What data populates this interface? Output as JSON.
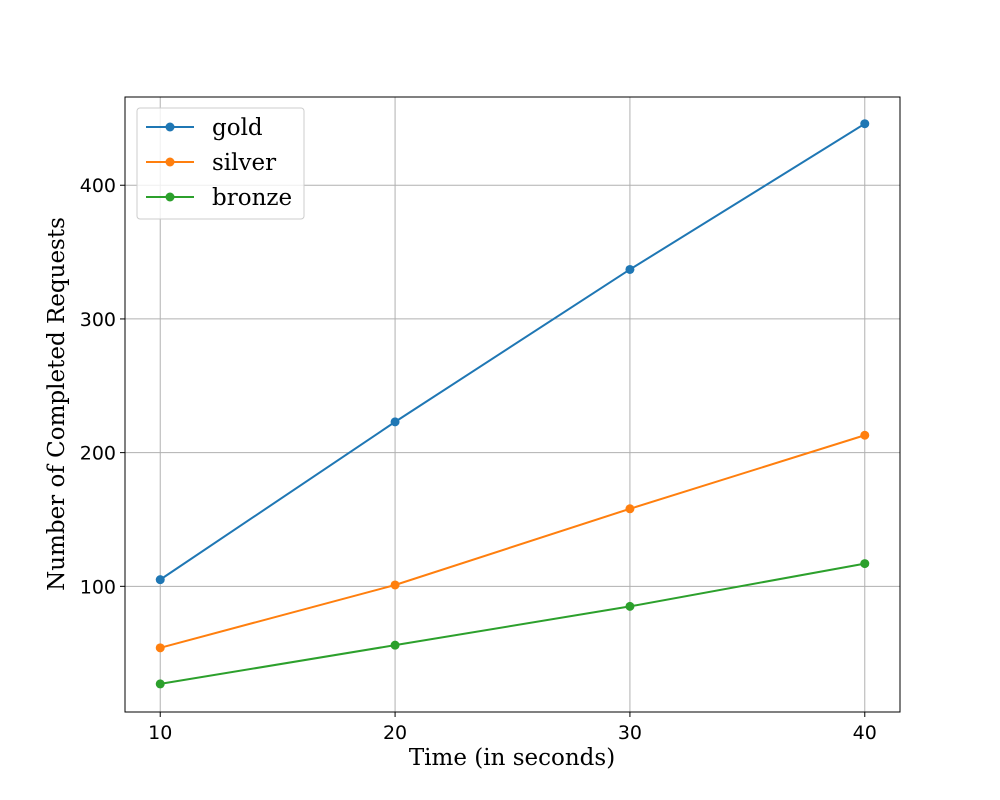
{
  "chart_data": {
    "type": "line",
    "title": "",
    "xlabel": "Time (in seconds)",
    "ylabel": "Number of Completed Requests",
    "x": [
      10,
      20,
      30,
      40
    ],
    "x_ticks": [
      10,
      20,
      30,
      40
    ],
    "y_ticks": [
      100,
      200,
      300,
      400
    ],
    "xlim": [
      8.5,
      41.5
    ],
    "ylim": [
      6,
      466
    ],
    "grid": true,
    "legend_position": "top-left",
    "series": [
      {
        "name": "gold",
        "color": "#1f77b4",
        "values": [
          105,
          223,
          337,
          446
        ]
      },
      {
        "name": "silver",
        "color": "#ff7f0e",
        "values": [
          54,
          101,
          158,
          213
        ]
      },
      {
        "name": "bronze",
        "color": "#2ca02c",
        "values": [
          27,
          56,
          85,
          117
        ]
      }
    ]
  }
}
